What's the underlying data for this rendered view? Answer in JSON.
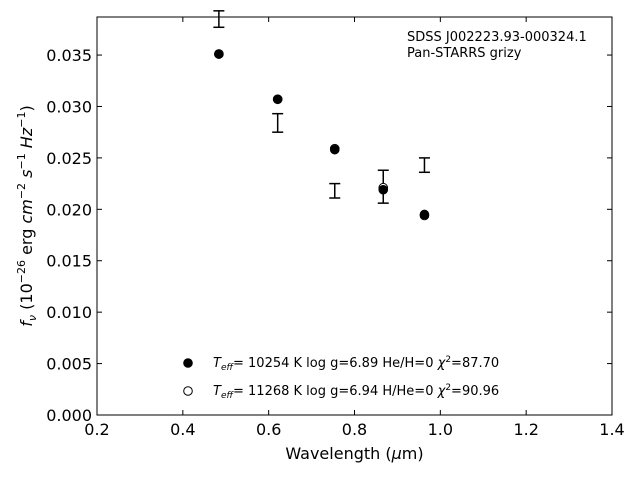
{
  "chart_data": {
    "type": "scatter",
    "annotation": [
      "SDSS J002223.93-000324.1",
      "Pan-STARRS grizy"
    ],
    "xlabel": "Wavelength (μm)",
    "ylabel": "f_ν (10^-26 erg cm^-2 s^-1 Hz^-1)",
    "xlim": [
      0.2,
      1.4
    ],
    "ylim": [
      0.0,
      0.0387
    ],
    "xticks": [
      "0.2",
      "0.4",
      "0.6",
      "0.8",
      "1.0",
      "1.2",
      "1.4"
    ],
    "yticks": [
      "0.000",
      "0.005",
      "0.010",
      "0.015",
      "0.020",
      "0.025",
      "0.030",
      "0.035"
    ],
    "grid": false,
    "legend_position": "lower-center",
    "observed": {
      "marker": "errorbar",
      "points": [
        {
          "x": 0.484,
          "y": 0.0385,
          "yerr": 0.0008
        },
        {
          "x": 0.621,
          "y": 0.0284,
          "yerr": 0.0009
        },
        {
          "x": 0.754,
          "y": 0.0218,
          "yerr": 0.0007
        },
        {
          "x": 0.867,
          "y": 0.0222,
          "yerr": 0.0016
        },
        {
          "x": 0.963,
          "y": 0.0243,
          "yerr": 0.0007
        }
      ]
    },
    "series": [
      {
        "marker": "filled-circle",
        "legend": {
          "teff": "10254",
          "logg": "6.89",
          "comp": "He/H=0",
          "chi2": "87.70"
        },
        "x": [
          0.484,
          0.621,
          0.754,
          0.867,
          0.963
        ],
        "y": [
          0.0351,
          0.0307,
          0.0258,
          0.0219,
          0.0195
        ]
      },
      {
        "marker": "open-circle",
        "legend": {
          "teff": "11268",
          "logg": "6.94",
          "comp": "H/He=0",
          "chi2": "90.96"
        },
        "x": [
          0.484,
          0.621,
          0.754,
          0.867,
          0.963
        ],
        "y": [
          0.0351,
          0.0307,
          0.0259,
          0.0221,
          0.0194
        ]
      }
    ]
  }
}
